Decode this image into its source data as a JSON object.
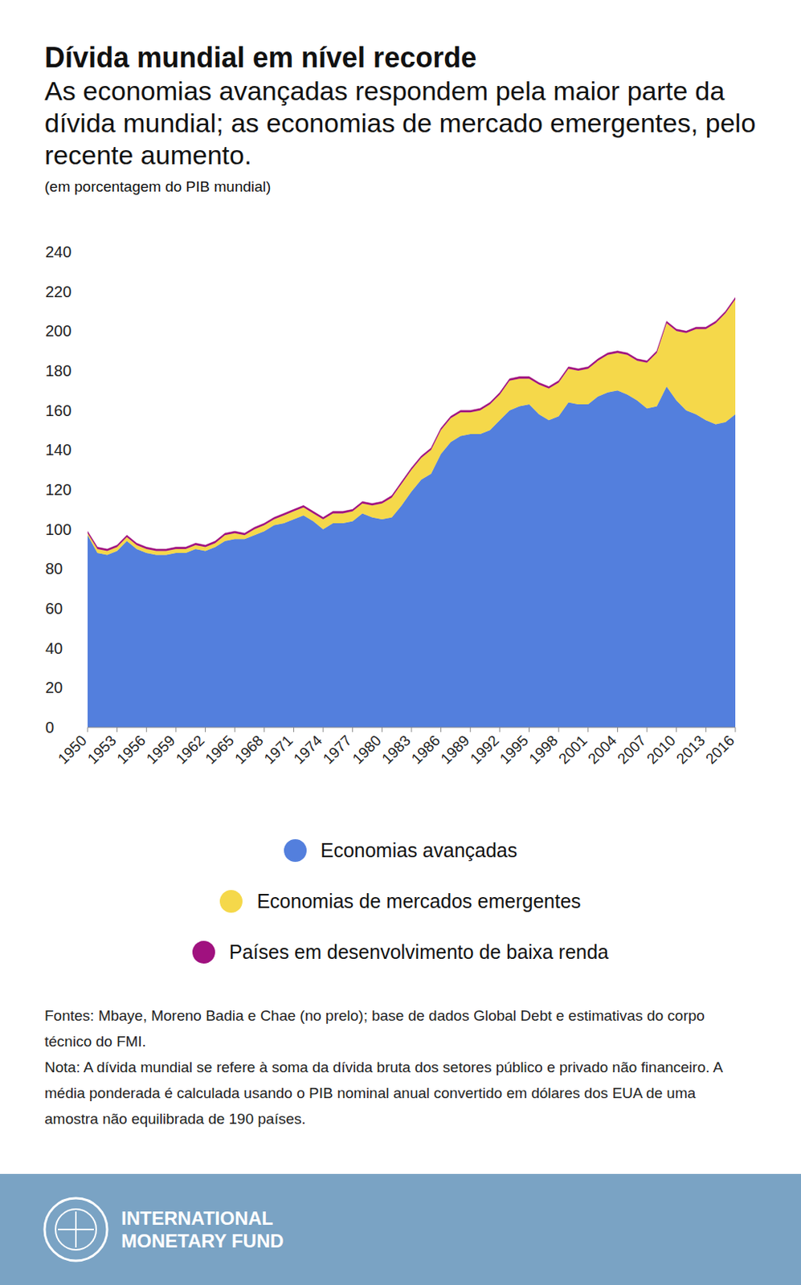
{
  "chart_data": {
    "type": "area",
    "title": "Dívida mundial em nível recorde",
    "subtitle": "As economias avançadas respondem pela maior parte da dívida mundial; as economias de mercado emergentes, pelo recente aumento.",
    "ylabel": "(em porcentagem do PIB mundial)",
    "x": [
      1950,
      1951,
      1952,
      1953,
      1954,
      1955,
      1956,
      1957,
      1958,
      1959,
      1960,
      1961,
      1962,
      1963,
      1964,
      1965,
      1966,
      1967,
      1968,
      1969,
      1970,
      1971,
      1972,
      1973,
      1974,
      1975,
      1976,
      1977,
      1978,
      1979,
      1980,
      1981,
      1982,
      1983,
      1984,
      1985,
      1986,
      1987,
      1988,
      1989,
      1990,
      1991,
      1992,
      1993,
      1994,
      1995,
      1996,
      1997,
      1998,
      1999,
      2000,
      2001,
      2002,
      2003,
      2004,
      2005,
      2006,
      2007,
      2008,
      2009,
      2010,
      2011,
      2012,
      2013,
      2014,
      2015,
      2016
    ],
    "series": [
      {
        "name": "Economias avançadas",
        "color": "#537fdd",
        "values": [
          97,
          88,
          87,
          89,
          94,
          90,
          88,
          87,
          87,
          88,
          88,
          90,
          89,
          91,
          94,
          95,
          95,
          97,
          99,
          102,
          103,
          105,
          107,
          104,
          100,
          103,
          103,
          104,
          108,
          106,
          105,
          106,
          112,
          119,
          125,
          128,
          138,
          144,
          147,
          148,
          148,
          150,
          155,
          160,
          162,
          163,
          158,
          155,
          157,
          164,
          163,
          163,
          167,
          169,
          170,
          168,
          165,
          161,
          162,
          172,
          165,
          160,
          158,
          155,
          153,
          154,
          158
        ]
      },
      {
        "name": "Economias de mercados emergentes",
        "color": "#f5d84a",
        "values": [
          1,
          2,
          2,
          2,
          2,
          2,
          2,
          2,
          2,
          2,
          2,
          2,
          2,
          2,
          3,
          3,
          2,
          3,
          3,
          3,
          4,
          4,
          4,
          4,
          5,
          5,
          5,
          5,
          5,
          6,
          8,
          10,
          11,
          11,
          11,
          12,
          12,
          12,
          12,
          11,
          12,
          13,
          13,
          15,
          14,
          13,
          15,
          16,
          17,
          17,
          17,
          18,
          18,
          19,
          19,
          20,
          20,
          23,
          27,
          32,
          35,
          39,
          43,
          46,
          51,
          55,
          58
        ]
      },
      {
        "name": "Países em desenvolvimento de baixa renda",
        "color": "#a0117f",
        "values": [
          1,
          1,
          1,
          1,
          1,
          1,
          1,
          1,
          1,
          1,
          1,
          1,
          1,
          1,
          1,
          1,
          1,
          1,
          1,
          1,
          1,
          1,
          1,
          1,
          1,
          1,
          1,
          1,
          1,
          1,
          1,
          1,
          1,
          1,
          1,
          1,
          1,
          1,
          1,
          1,
          1,
          1,
          1,
          1,
          1,
          1,
          1,
          1,
          1,
          1,
          1,
          1,
          1,
          1,
          1,
          1,
          1,
          1,
          1,
          1,
          1,
          1,
          1,
          1,
          1,
          1,
          1
        ]
      }
    ],
    "xlim": [
      1950,
      2016
    ],
    "xticks": [
      1950,
      1953,
      1956,
      1959,
      1962,
      1965,
      1968,
      1971,
      1974,
      1977,
      1980,
      1983,
      1986,
      1989,
      1992,
      1995,
      1998,
      2001,
      2004,
      2007,
      2010,
      2013,
      2016
    ],
    "ylim": [
      0,
      240
    ],
    "yticks": [
      0,
      20,
      40,
      60,
      80,
      100,
      120,
      140,
      160,
      180,
      200,
      220,
      240
    ],
    "stacked": true,
    "grid": false
  },
  "sources": "Fontes: Mbaye, Moreno Badia e Chae (no prelo); base de dados Global Debt e estimativas do corpo técnico do FMI.",
  "note": "Nota: A dívida mundial se refere à soma da dívida bruta dos setores público e privado não financeiro. A média ponderada é calculada usando o PIB nominal anual convertido em dólares dos EUA de uma amostra não equilibrada de 190 países.",
  "footer": "INTERNATIONAL MONETARY FUND"
}
